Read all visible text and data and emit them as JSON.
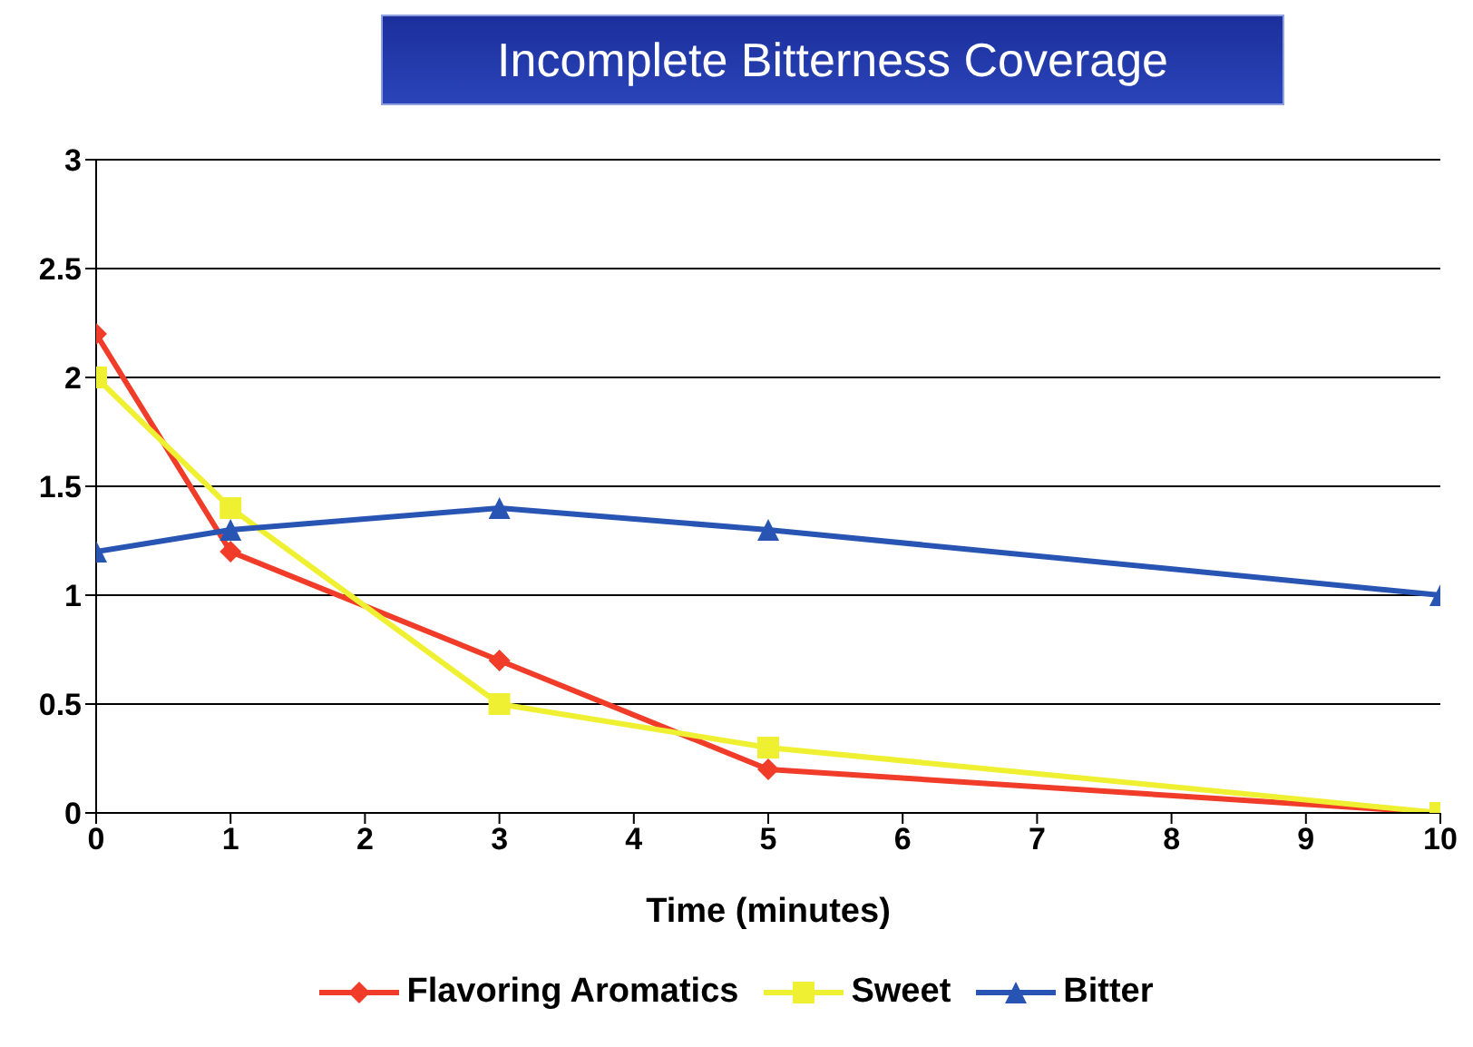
{
  "chart_data": {
    "type": "line",
    "title": "Incomplete Bitterness Coverage",
    "xlabel": "Time (minutes)",
    "x": [
      0,
      1,
      3,
      5,
      10
    ],
    "series": [
      {
        "name": "Flavoring Aromatics",
        "color": "#f03c28",
        "values": [
          2.2,
          1.2,
          0.7,
          0.2,
          0
        ],
        "marker": "diamond"
      },
      {
        "name": "Sweet",
        "color": "#f0f032",
        "values": [
          2.0,
          1.4,
          0.5,
          0.3,
          0
        ],
        "marker": "square"
      },
      {
        "name": "Bitter",
        "color": "#2855b4",
        "values": [
          1.2,
          1.3,
          1.4,
          1.3,
          1.0
        ],
        "marker": "triangle"
      }
    ],
    "xlim": [
      0,
      10
    ],
    "xticks": [
      0,
      1,
      2,
      3,
      4,
      5,
      6,
      7,
      8,
      9,
      10
    ],
    "ylim": [
      0,
      3
    ],
    "yticks": [
      0,
      0.5,
      1,
      1.5,
      2,
      2.5,
      3
    ],
    "grid": "y",
    "legend": "bottom",
    "line_style": "solid"
  }
}
